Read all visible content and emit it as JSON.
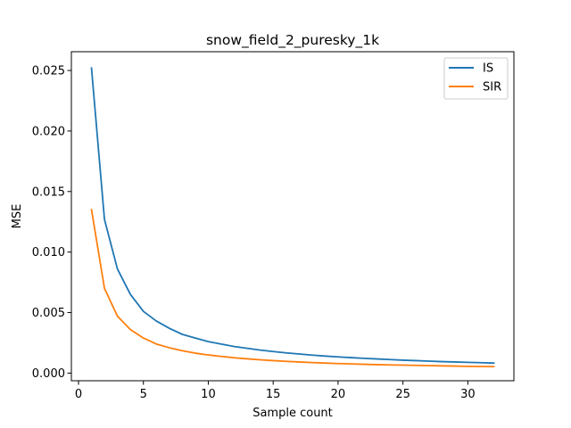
{
  "chart_data": {
    "type": "line",
    "title": "snow_field_2_puresky_1k",
    "xlabel": "Sample count",
    "ylabel": "MSE",
    "xlim": [
      -0.55,
      33.55
    ],
    "ylim": [
      -0.00063,
      0.02655
    ],
    "xticks": [
      0,
      5,
      10,
      15,
      20,
      25,
      30
    ],
    "xtick_labels": [
      "0",
      "5",
      "10",
      "15",
      "20",
      "25",
      "30"
    ],
    "yticks": [
      0.0,
      0.005,
      0.01,
      0.015,
      0.02,
      0.025
    ],
    "ytick_labels": [
      "0.000",
      "0.005",
      "0.010",
      "0.015",
      "0.020",
      "0.025"
    ],
    "grid": false,
    "legend_position": "top-right",
    "x": [
      1,
      2,
      3,
      4,
      5,
      6,
      7,
      8,
      9,
      10,
      11,
      12,
      13,
      14,
      15,
      16,
      17,
      18,
      19,
      20,
      21,
      22,
      23,
      24,
      25,
      26,
      27,
      28,
      29,
      30,
      31,
      32
    ],
    "series": [
      {
        "name": "IS",
        "color": "#1f77b4",
        "values": [
          0.0252,
          0.0127,
          0.0086,
          0.0065,
          0.0051,
          0.0043,
          0.0037,
          0.0032,
          0.0029,
          0.0026,
          0.0024,
          0.0022,
          0.00205,
          0.0019,
          0.00178,
          0.00167,
          0.00158,
          0.00149,
          0.00141,
          0.00134,
          0.00128,
          0.00122,
          0.00117,
          0.00112,
          0.00107,
          0.00103,
          0.00099,
          0.00095,
          0.00092,
          0.00089,
          0.00086,
          0.00083
        ]
      },
      {
        "name": "SIR",
        "color": "#ff7f0e",
        "values": [
          0.0135,
          0.007,
          0.0047,
          0.0036,
          0.0029,
          0.0024,
          0.0021,
          0.00185,
          0.00165,
          0.0015,
          0.00138,
          0.00127,
          0.00118,
          0.0011,
          0.00103,
          0.00097,
          0.00092,
          0.00087,
          0.00083,
          0.00079,
          0.00076,
          0.00073,
          0.0007,
          0.00068,
          0.00066,
          0.00064,
          0.00062,
          0.0006,
          0.00058,
          0.00056,
          0.00055,
          0.00054
        ]
      }
    ]
  }
}
